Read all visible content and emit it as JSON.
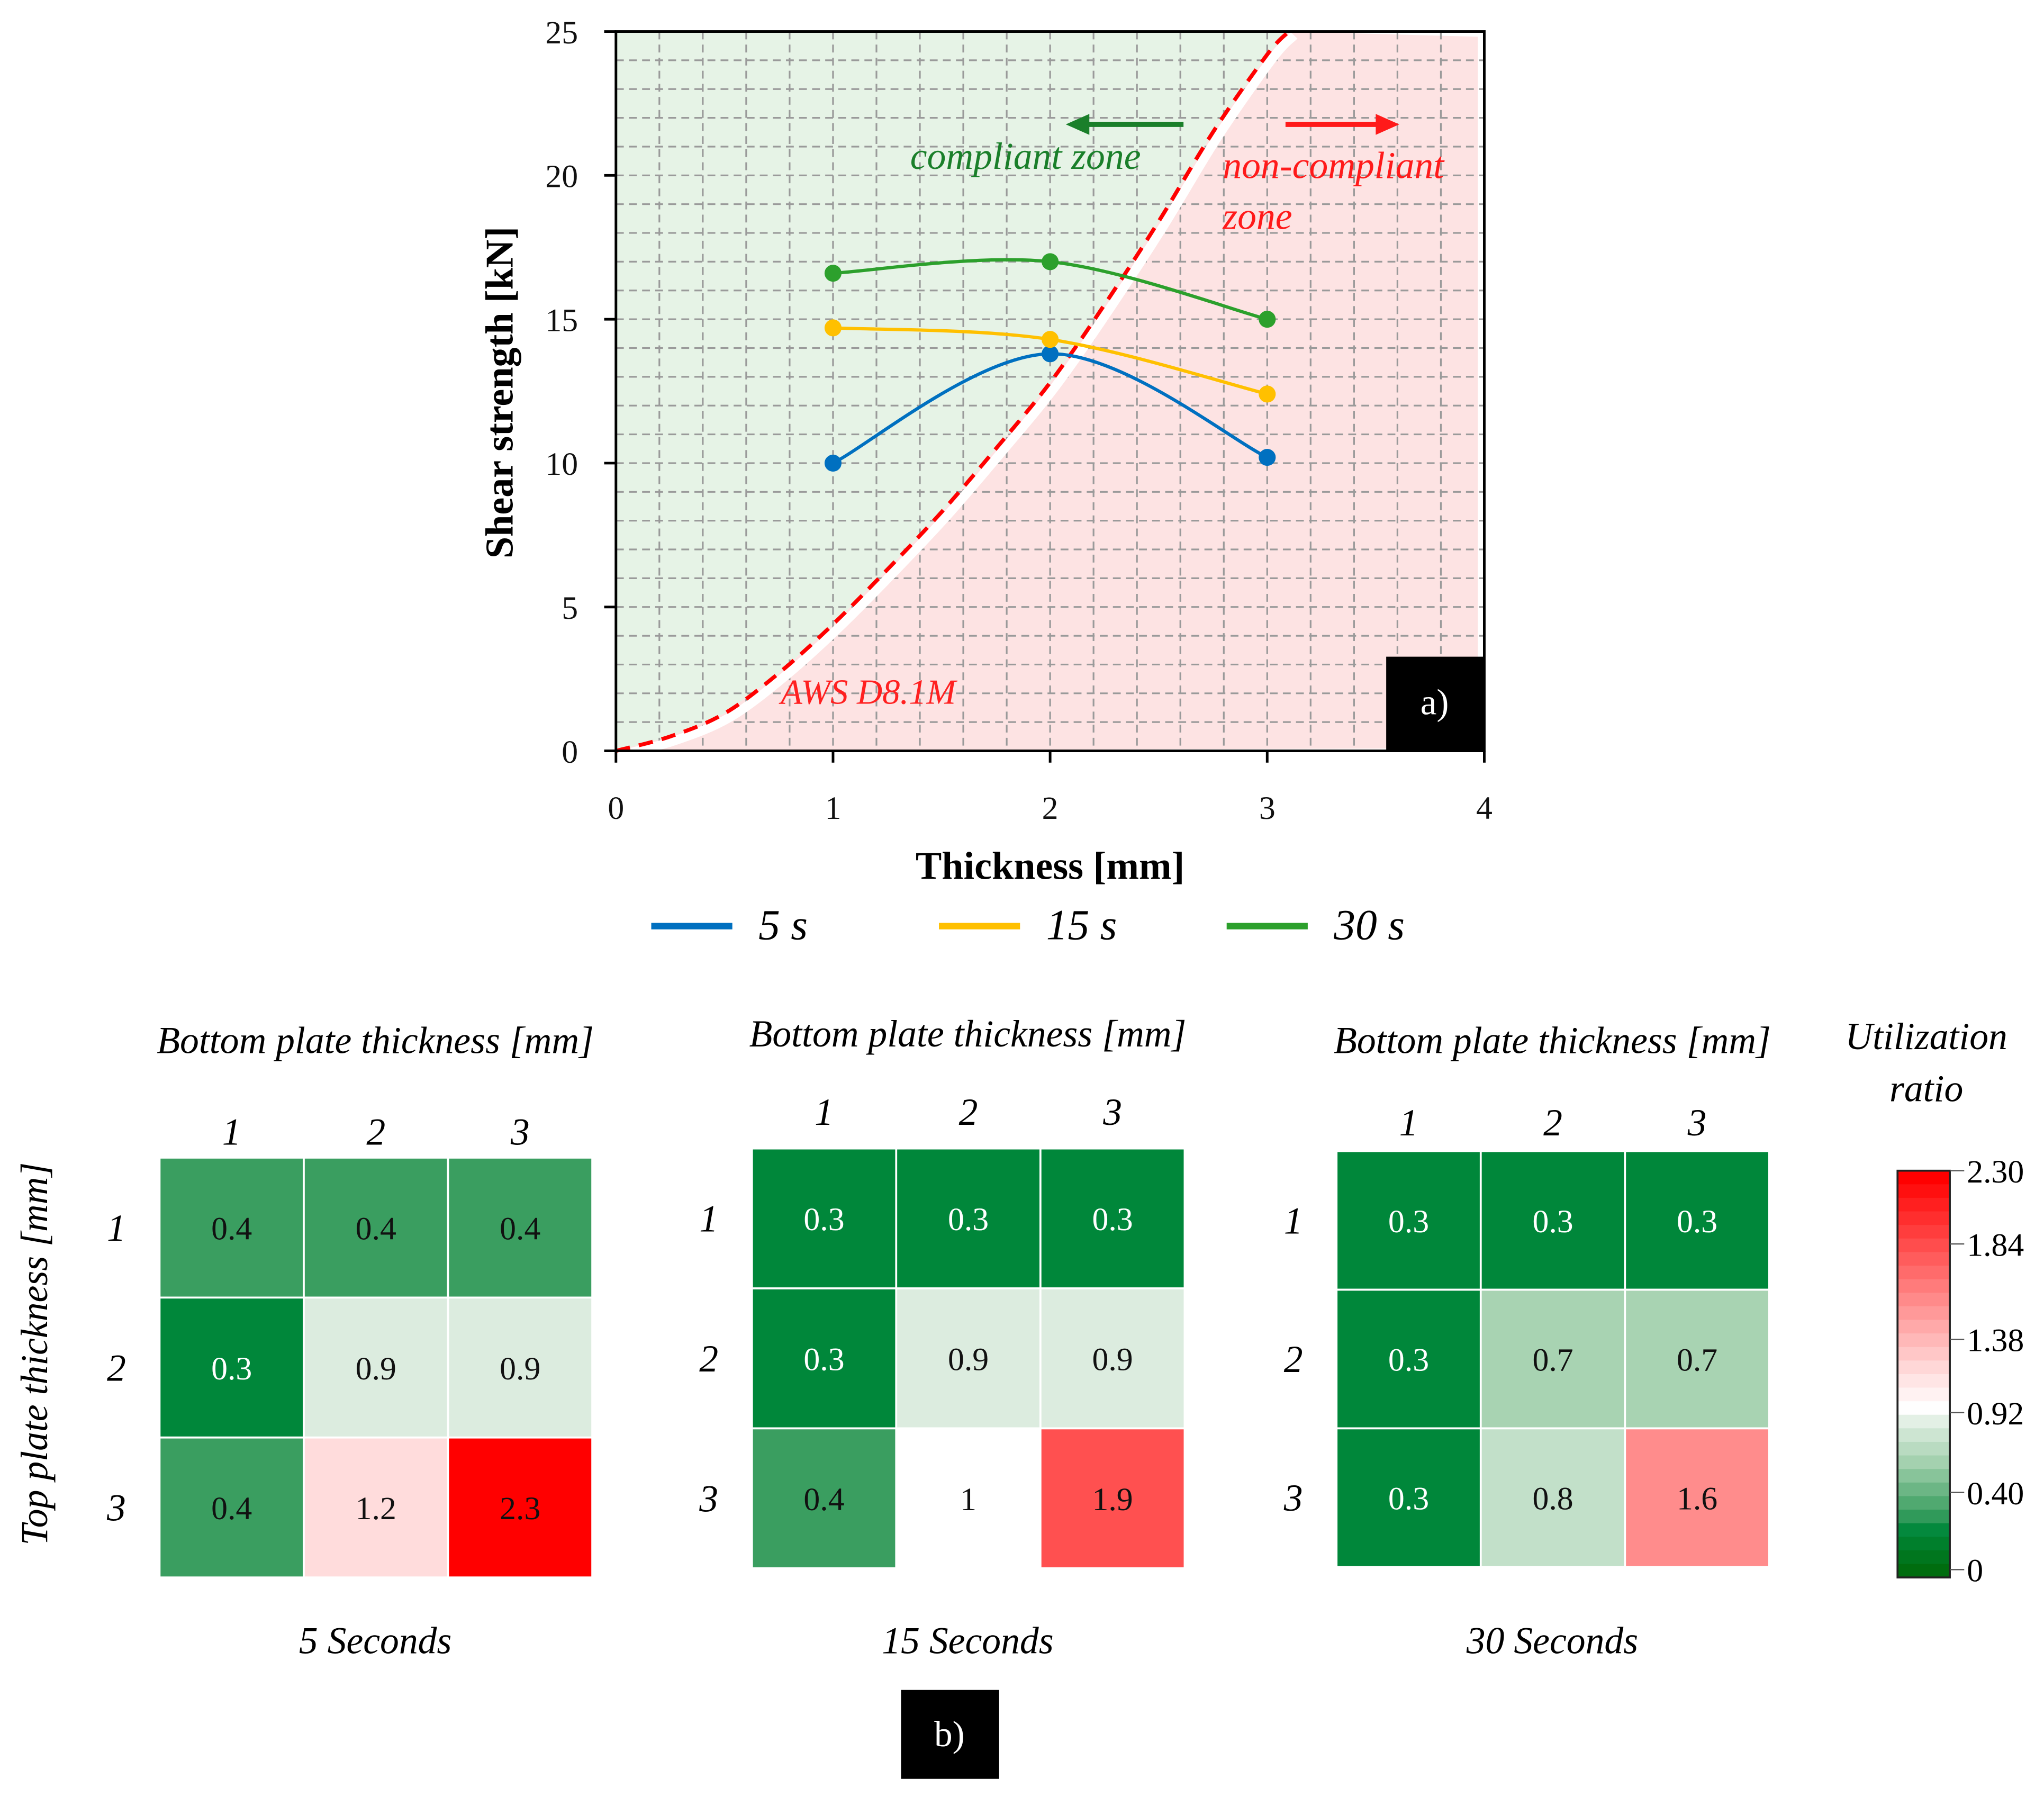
{
  "chart_data": [
    {
      "type": "line",
      "panel_label": "a)",
      "xlabel": "Thickness  [mm]",
      "ylabel": "Shear strength [kN]",
      "xlim": [
        0,
        4
      ],
      "ylim": [
        0,
        25
      ],
      "xticks": [
        "0",
        "1",
        "2",
        "3",
        "4"
      ],
      "yticks": [
        "0",
        "5",
        "10",
        "15",
        "20",
        "25"
      ],
      "grid": true,
      "x": [
        1,
        2,
        3
      ],
      "series": [
        {
          "name": "5 s",
          "color": "#0070c0",
          "values": [
            10.0,
            13.8,
            10.2
          ]
        },
        {
          "name": "15 s",
          "color": "#ffc000",
          "values": [
            14.7,
            14.3,
            12.4
          ]
        },
        {
          "name": "30 s",
          "color": "#2ca02c",
          "values": [
            16.6,
            17.0,
            15.0
          ]
        }
      ],
      "reference_curve": {
        "name": "AWS D8.1M",
        "color": "#ff0000",
        "x": [
          0,
          0.25,
          0.5,
          0.75,
          1,
          1.25,
          1.5,
          1.75,
          2,
          2.25,
          2.5,
          2.75,
          3,
          3.1
        ],
        "y": [
          0,
          0.5,
          1.3,
          2.7,
          4.4,
          6.3,
          8.3,
          10.5,
          12.8,
          15.5,
          18.4,
          21.5,
          24.2,
          25
        ]
      },
      "annotations": {
        "compliant": "compliant zone",
        "noncompliant_1": "non-compliant",
        "noncompliant_2": "zone"
      },
      "legend_position": "bottom"
    },
    {
      "type": "heatmap",
      "panel_label": "b)",
      "xlabel": "Bottom plate thickness [mm]",
      "ylabel": "Top  plate thickness [mm]",
      "categories": [
        "1",
        "2",
        "3"
      ],
      "colorbar": {
        "title_1": "Utilization",
        "title_2": "ratio",
        "range": [
          0,
          2.3
        ],
        "ticks": [
          "2.30",
          "1.84",
          "1.38",
          "0.92",
          "0.40",
          "0"
        ]
      },
      "maps": [
        {
          "title": "5 Seconds",
          "values": [
            [
              "0.4",
              "0.4",
              "0.4"
            ],
            [
              "0.3",
              "0.9",
              "0.9"
            ],
            [
              "0.4",
              "1.2",
              "2.3"
            ]
          ]
        },
        {
          "title": "15 Seconds",
          "values": [
            [
              "0.3",
              "0.3",
              "0.3"
            ],
            [
              "0.3",
              "0.9",
              "0.9"
            ],
            [
              "0.4",
              "1",
              "1.9"
            ]
          ]
        },
        {
          "title": "30 Seconds",
          "values": [
            [
              "0.3",
              "0.3",
              "0.3"
            ],
            [
              "0.3",
              "0.7",
              "0.7"
            ],
            [
              "0.3",
              "0.8",
              "1.6"
            ]
          ]
        }
      ]
    }
  ]
}
